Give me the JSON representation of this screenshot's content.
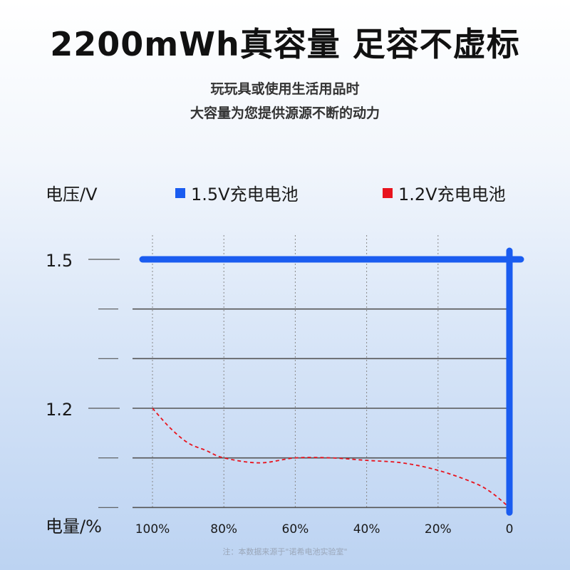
{
  "header": {
    "title": "2200mWh真容量 足容不虚标",
    "subtitle_line1": "玩玩具或使用生活用品时",
    "subtitle_line2": "大容量为您提供源源不断的动力"
  },
  "footnote": "注：本数据来源于\"诺希电池实验室\"",
  "colors": {
    "series_1_5v": "#1a5cf0",
    "series_1_2v": "#e8141e",
    "grid": "#555555",
    "vgrid": "#888888"
  },
  "chart_data": {
    "type": "line",
    "xlabel": "电量/%",
    "ylabel": "电压/V",
    "x_ticks": [
      "100%",
      "80%",
      "60%",
      "40%",
      "20%",
      "0"
    ],
    "x_tick_values": [
      100,
      80,
      60,
      40,
      20,
      0
    ],
    "y_ticks": [
      "1.5",
      "1.2"
    ],
    "y_tick_values": [
      1.5,
      1.2
    ],
    "xlim": [
      100,
      0
    ],
    "ylim": [
      0.98,
      1.5
    ],
    "grid": true,
    "legend_position": "top",
    "series": [
      {
        "name": "1.5V充电电池",
        "style": "solid",
        "points": [
          [
            100,
            1.5
          ],
          [
            80,
            1.5
          ],
          [
            60,
            1.5
          ],
          [
            40,
            1.5
          ],
          [
            20,
            1.5
          ],
          [
            0,
            1.5
          ],
          [
            0,
            0.99
          ]
        ]
      },
      {
        "name": "1.2V充电电池",
        "style": "dashed",
        "points": [
          [
            100,
            1.2
          ],
          [
            95,
            1.16
          ],
          [
            90,
            1.13
          ],
          [
            85,
            1.115
          ],
          [
            80,
            1.1
          ],
          [
            70,
            1.09
          ],
          [
            60,
            1.1
          ],
          [
            50,
            1.1
          ],
          [
            40,
            1.095
          ],
          [
            30,
            1.09
          ],
          [
            20,
            1.075
          ],
          [
            10,
            1.05
          ],
          [
            5,
            1.03
          ],
          [
            0,
            1.0
          ]
        ]
      }
    ]
  }
}
